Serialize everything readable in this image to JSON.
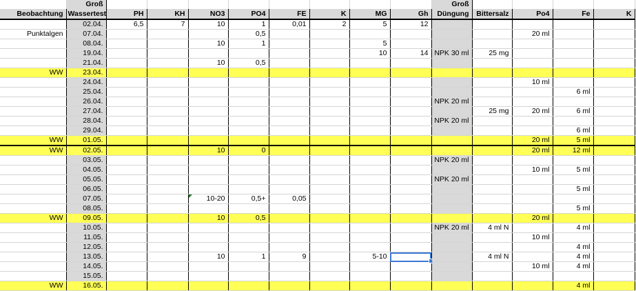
{
  "colors": {
    "highlight": "#ffff55",
    "header_gray": "#d9d9d9",
    "selection": "#3a78d4"
  },
  "header_top": [
    "",
    "Groß",
    "",
    "",
    "",
    "",
    "",
    "",
    "",
    "",
    "Groß",
    "",
    "",
    "",
    ""
  ],
  "headers": [
    "Beobachtung",
    "Wassertests",
    "PH",
    "KH",
    "NO3",
    "PO4",
    "FE",
    "K",
    "MG",
    "Gh",
    "Düngung",
    "Bittersalz",
    "Po4",
    "Fe",
    "K"
  ],
  "rows": [
    {
      "cells": [
        "",
        "02.04.",
        "6,5",
        "7",
        "10",
        "1",
        "0,01",
        "2",
        "5",
        "12",
        "",
        "",
        "",
        "",
        ""
      ]
    },
    {
      "cells": [
        "Punktalgen",
        "07.04.",
        "",
        "",
        "",
        "0,5",
        "",
        "",
        "",
        "",
        "",
        "",
        "20 ml",
        "",
        ""
      ]
    },
    {
      "cells": [
        "",
        "08.04.",
        "",
        "",
        "10",
        "1",
        "",
        "",
        "5",
        "",
        "",
        "",
        "",
        "",
        ""
      ]
    },
    {
      "cells": [
        "",
        "19.04.",
        "",
        "",
        "",
        "",
        "",
        "",
        "10",
        "14",
        "NPK 30 ml",
        "25 mg",
        "",
        "",
        ""
      ]
    },
    {
      "cells": [
        "",
        "21.04.",
        "",
        "",
        "10",
        "0,5",
        "",
        "",
        "",
        "",
        "",
        "",
        "",
        "",
        ""
      ]
    },
    {
      "ww": true,
      "cells": [
        "WW",
        "23.04.",
        "",
        "",
        "",
        "",
        "",
        "",
        "",
        "",
        "",
        "",
        "",
        "",
        ""
      ]
    },
    {
      "cells": [
        "",
        "24.04.",
        "",
        "",
        "",
        "",
        "",
        "",
        "",
        "",
        "",
        "",
        "10 ml",
        "",
        ""
      ]
    },
    {
      "cells": [
        "",
        "25.04.",
        "",
        "",
        "",
        "",
        "",
        "",
        "",
        "",
        "",
        "",
        "",
        "6 ml",
        ""
      ]
    },
    {
      "cells": [
        "",
        "26.04.",
        "",
        "",
        "",
        "",
        "",
        "",
        "",
        "",
        "NPK 20 ml",
        "",
        "",
        "",
        ""
      ]
    },
    {
      "cells": [
        "",
        "27.04.",
        "",
        "",
        "",
        "",
        "",
        "",
        "",
        "",
        "",
        "25 mg",
        "20 ml",
        "6 ml",
        ""
      ]
    },
    {
      "cells": [
        "",
        "28.04.",
        "",
        "",
        "",
        "",
        "",
        "",
        "",
        "",
        "NPK 20 ml",
        "",
        "",
        "",
        ""
      ]
    },
    {
      "cells": [
        "",
        "29.04.",
        "",
        "",
        "",
        "",
        "",
        "",
        "",
        "",
        "",
        "",
        "",
        "6 ml",
        ""
      ]
    },
    {
      "ww": true,
      "cells": [
        "WW",
        "01.05.",
        "",
        "",
        "",
        "",
        "",
        "",
        "",
        "",
        "",
        "",
        "20 ml",
        "5 ml",
        ""
      ]
    },
    {
      "ww": true,
      "thick": true,
      "cells": [
        "WW",
        "02.05.",
        "",
        "",
        "10",
        "0",
        "",
        "",
        "",
        "",
        "",
        "",
        "20 ml",
        "12 ml",
        ""
      ]
    },
    {
      "cells": [
        "",
        "03.05.",
        "",
        "",
        "",
        "",
        "",
        "",
        "",
        "",
        "NPK 20 ml",
        "",
        "",
        "",
        ""
      ]
    },
    {
      "cells": [
        "",
        "04.05.",
        "",
        "",
        "",
        "",
        "",
        "",
        "",
        "",
        "",
        "",
        "10 ml",
        "5 ml",
        ""
      ]
    },
    {
      "cells": [
        "",
        "05.05.",
        "",
        "",
        "",
        "",
        "",
        "",
        "",
        "",
        "NPK 20 ml",
        "",
        "",
        "",
        ""
      ]
    },
    {
      "cells": [
        "",
        "06.05.",
        "",
        "",
        "",
        "",
        "",
        "",
        "",
        "",
        "",
        "",
        "",
        "5 ml",
        ""
      ]
    },
    {
      "cells": [
        "",
        "07.05.",
        "",
        "",
        "10-20",
        "0,5+",
        "0,05",
        "",
        "",
        "",
        "",
        "",
        "",
        "",
        ""
      ],
      "comment_col": 4
    },
    {
      "cells": [
        "",
        "08.05.",
        "",
        "",
        "",
        "",
        "",
        "",
        "",
        "",
        "",
        "",
        "",
        "5 ml",
        ""
      ]
    },
    {
      "ww": true,
      "cells": [
        "WW",
        "09.05.",
        "",
        "",
        "10",
        "0,5",
        "",
        "",
        "",
        "",
        "",
        "",
        "20 ml",
        "",
        ""
      ]
    },
    {
      "cells": [
        "",
        "10.05.",
        "",
        "",
        "",
        "",
        "",
        "",
        "",
        "",
        "NPK 20 ml",
        "4 ml N",
        "",
        "4 ml",
        ""
      ]
    },
    {
      "cells": [
        "",
        "11.05.",
        "",
        "",
        "",
        "",
        "",
        "",
        "",
        "",
        "",
        "",
        "10 ml",
        "",
        ""
      ]
    },
    {
      "cells": [
        "",
        "12.05.",
        "",
        "",
        "",
        "",
        "",
        "",
        "",
        "",
        "",
        "",
        "",
        "4 ml",
        ""
      ]
    },
    {
      "cells": [
        "",
        "13.05.",
        "",
        "",
        "10",
        "1",
        "9",
        "",
        "5-10",
        "",
        "",
        "4 ml N",
        "",
        "4 ml",
        ""
      ],
      "selected_col": 9
    },
    {
      "cells": [
        "",
        "14.05.",
        "",
        "",
        "",
        "",
        "",
        "",
        "",
        "",
        "",
        "",
        "10 ml",
        "4 ml",
        ""
      ]
    },
    {
      "cells": [
        "",
        "15.05.",
        "",
        "",
        "",
        "",
        "",
        "",
        "",
        "",
        "",
        "",
        "",
        "",
        ""
      ]
    },
    {
      "ww": true,
      "cells": [
        "WW",
        "16.05.",
        "",
        "",
        "",
        "",
        "",
        "",
        "",
        "",
        "",
        "",
        "",
        "4 ml",
        ""
      ]
    }
  ]
}
